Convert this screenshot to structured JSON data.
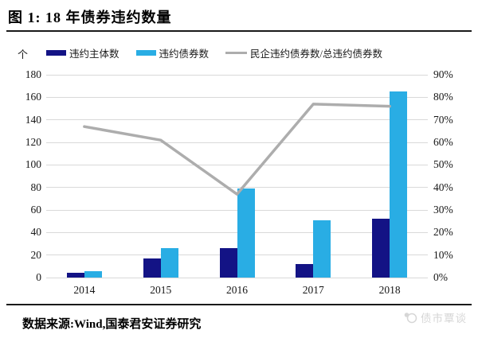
{
  "header": {
    "title": "图 1: 18 年债券违约数量"
  },
  "legend": {
    "unit_label": "个",
    "items": [
      {
        "label": "违约主体数",
        "color": "#131385",
        "type": "bar"
      },
      {
        "label": "违约债券数",
        "color": "#29ade4",
        "type": "bar"
      },
      {
        "label": "民企违约债券数/总违约债券数",
        "color": "#adadad",
        "type": "line"
      }
    ]
  },
  "chart_data": {
    "type": "bar",
    "subtype": "combo-bar-line",
    "title": "18 年债券违约数量",
    "categories": [
      "2014",
      "2015",
      "2016",
      "2017",
      "2018"
    ],
    "series": [
      {
        "name": "违约主体数",
        "type": "bar",
        "axis": "left",
        "color": "#131385",
        "values": [
          4,
          17,
          26,
          12,
          52
        ]
      },
      {
        "name": "违约债券数",
        "type": "bar",
        "axis": "left",
        "color": "#29ade4",
        "values": [
          6,
          26,
          79,
          51,
          165
        ]
      },
      {
        "name": "民企违约债券数/总违约债券数",
        "type": "line",
        "axis": "right",
        "color": "#adadad",
        "values_percent": [
          67,
          61,
          37,
          77,
          76
        ]
      }
    ],
    "left_axis": {
      "unit": "个",
      "min": 0,
      "max": 180,
      "step": 20,
      "ticks": [
        "180",
        "160",
        "140",
        "120",
        "100",
        "80",
        "60",
        "40",
        "20",
        "0"
      ]
    },
    "right_axis": {
      "min": 0,
      "max": 90,
      "step": 10,
      "ticks": [
        "90%",
        "80%",
        "70%",
        "60%",
        "50%",
        "40%",
        "30%",
        "20%",
        "10%",
        "0%"
      ]
    },
    "grid": true,
    "legend_position": "top",
    "gridline_color": "#d9d9d9"
  },
  "footer": {
    "source": "数据来源:Wind,国泰君安证券研究"
  },
  "watermark": {
    "text": "债市覃谈"
  }
}
